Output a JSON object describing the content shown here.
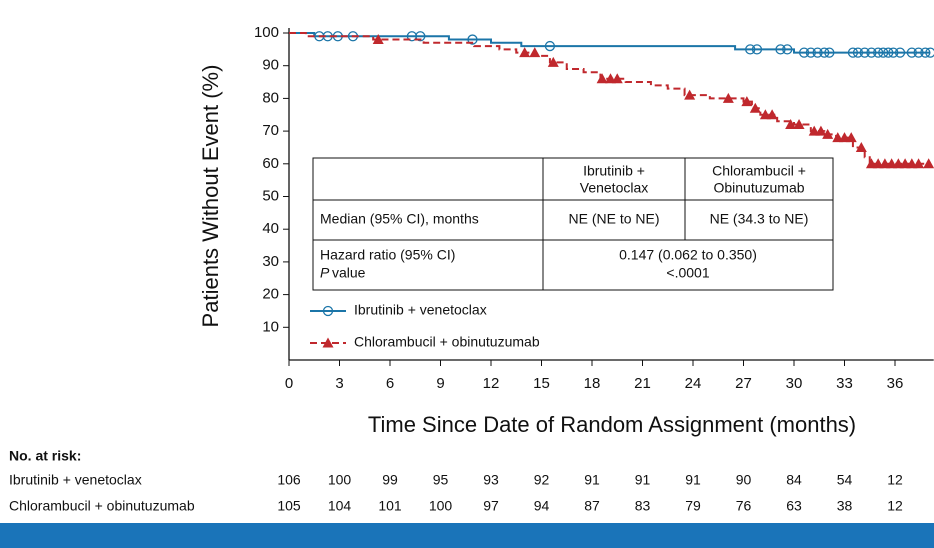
{
  "chart_data": {
    "type": "survival",
    "x_label": "Time Since Date of Random Assignment (months)",
    "y_label": "Patients Without Event (%)",
    "xlim": [
      0,
      38.3
    ],
    "ylim": [
      0,
      100
    ],
    "xticks": [
      0,
      3,
      6,
      9,
      12,
      15,
      18,
      21,
      24,
      27,
      30,
      33,
      36
    ],
    "yticks": [
      10,
      20,
      30,
      40,
      50,
      60,
      70,
      80,
      90,
      100
    ],
    "series": [
      {
        "name": "Ibrutinib + venetoclax",
        "color": "#1b75a8",
        "marker": "circle",
        "dashed": false,
        "x": [
          0,
          1.5,
          9.5,
          12,
          13.8,
          26.5,
          30
        ],
        "values": [
          100,
          99,
          98,
          97,
          96,
          95,
          94
        ],
        "censored_x": [
          1.8,
          2.3,
          2.9,
          3.8,
          7.3,
          7.8,
          10.9,
          15.5,
          27.4,
          27.8,
          29.2,
          29.6,
          30.6,
          31,
          31.4,
          31.8,
          32.1,
          33.5,
          33.8,
          34.2,
          34.6,
          35,
          35.3,
          35.6,
          35.9,
          36.3,
          37,
          37.4,
          37.8,
          38.1
        ],
        "censored_values": [
          99,
          99,
          99,
          99,
          99,
          99,
          98,
          96,
          95,
          95,
          95,
          95,
          94,
          94,
          94,
          94,
          94,
          94,
          94,
          94,
          94,
          94,
          94,
          94,
          94,
          94,
          94,
          94,
          94,
          94
        ]
      },
      {
        "name": "Chlorambucil + obinutuzumab",
        "color": "#c0282d",
        "marker": "triangle",
        "dashed": true,
        "x": [
          0,
          1,
          5,
          8,
          11,
          12.5,
          13.5,
          14.5,
          15.5,
          16.5,
          17.5,
          18.5,
          20,
          21.5,
          22.5,
          23.5,
          25,
          27,
          27.5,
          28,
          29,
          30,
          31,
          31.8,
          32.5,
          33.5,
          34.2,
          34.5
        ],
        "values": [
          100,
          99,
          98,
          97,
          96,
          95,
          94,
          93,
          91,
          89,
          88,
          86,
          85,
          84,
          83,
          81,
          80,
          79,
          77,
          75,
          73,
          72,
          70,
          69,
          68,
          65,
          62,
          60
        ],
        "censored_x": [
          5.3,
          14,
          14.6,
          15.7,
          18.6,
          19.1,
          19.5,
          23.8,
          26.1,
          27.2,
          27.7,
          28.3,
          28.7,
          29.8,
          30.3,
          31.2,
          31.6,
          32,
          32.6,
          33,
          33.4,
          34,
          34.6,
          35,
          35.4,
          35.8,
          36.2,
          36.6,
          37,
          37.4,
          38
        ],
        "censored_values": [
          98,
          94,
          94,
          91,
          86,
          86,
          86,
          81,
          80,
          79,
          77,
          75,
          75,
          72,
          72,
          70,
          70,
          69,
          68,
          68,
          68,
          65,
          60,
          60,
          60,
          60,
          60,
          60,
          60,
          60,
          60
        ]
      }
    ],
    "summary_table": {
      "headers": [
        [
          "Ibrutinib +",
          "Venetoclax"
        ],
        [
          "Chlorambucil +",
          "Obinutuzumab"
        ]
      ],
      "median_row": [
        "Median (95% CI), months",
        "NE (NE to NE)",
        "NE (34.3 to NE)"
      ],
      "hazard_label": "Hazard ratio (95% CI)",
      "p_italic": "P",
      "p_rest": "value",
      "hazard_value": "0.147 (0.062 to 0.350)",
      "p_value": "<.0001"
    },
    "at_risk": {
      "title": "No. at risk:",
      "rows": [
        {
          "name": "Ibrutinib + venetoclax",
          "values": [
            106,
            100,
            99,
            95,
            93,
            92,
            91,
            91,
            91,
            90,
            84,
            54,
            12
          ]
        },
        {
          "name": "Chlorambucil + obinutuzumab",
          "values": [
            105,
            104,
            101,
            100,
            97,
            94,
            87,
            83,
            79,
            76,
            63,
            38,
            12
          ]
        }
      ]
    }
  }
}
